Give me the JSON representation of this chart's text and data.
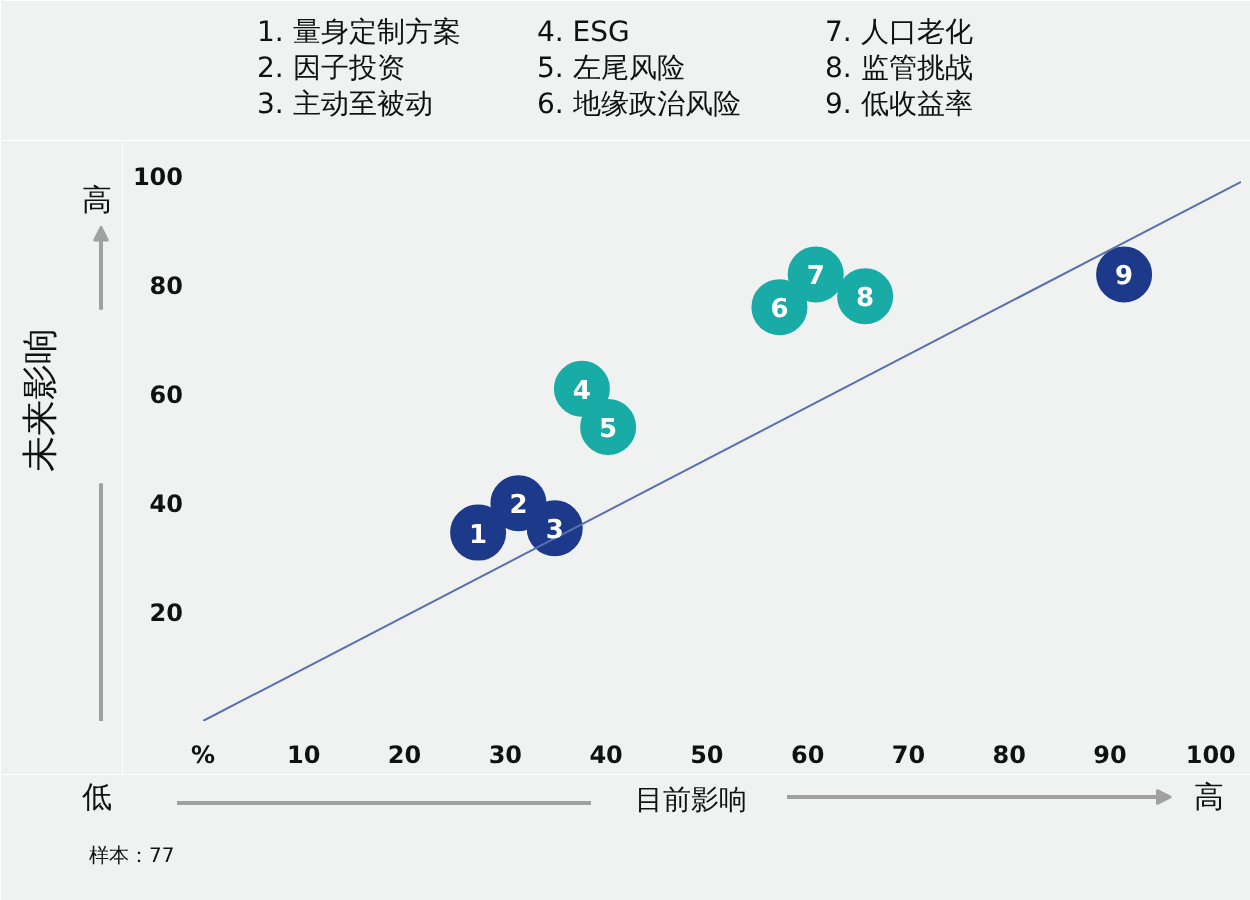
{
  "chart_data": {
    "type": "scatter",
    "xlabel": "目前影响",
    "ylabel": "未来影响",
    "xlim": [
      0,
      103
    ],
    "ylim": [
      0,
      101
    ],
    "xticks": [
      {
        "value": 0,
        "label": "%"
      },
      10,
      20,
      30,
      40,
      50,
      60,
      70,
      80,
      90,
      100
    ],
    "yticks": [
      20,
      40,
      60,
      80,
      100
    ],
    "grid": false,
    "series": [
      {
        "color": "#1d3a8a",
        "marker": "circle",
        "x": [
          27.3,
          31.3,
          34.9,
          91.4
        ],
        "values": [
          34.6,
          40,
          35.4,
          82
        ]
      },
      {
        "color": "#19aba5",
        "marker": "circle",
        "x": [
          37.6,
          40.2,
          57.2,
          60.8,
          65.7
        ],
        "values": [
          61,
          54,
          76,
          82,
          78
        ]
      },
      {
        "type": "line",
        "color": "#5a6fae",
        "x": [
          0,
          103
        ],
        "values": [
          0,
          99
        ]
      }
    ],
    "annotations": [
      "1.  量身定制方案",
      "2.  因子投资",
      "3.  主动至被动",
      "4.  ESG",
      "5.  左尾风险",
      "6.  地缘政治风险",
      "7.  人口老化",
      "8.  监管挑战",
      "9.  低收益率",
      "样本：77",
      "高",
      "低",
      "高",
      {
        "text": "1",
        "x": 27.3,
        "y": 34.6
      },
      {
        "text": "2",
        "x": 31.3,
        "y": 40
      },
      {
        "text": "3",
        "x": 34.9,
        "y": 35.4
      },
      {
        "text": "9",
        "x": 91.4,
        "y": 82
      },
      {
        "text": "4",
        "x": 37.6,
        "y": 61
      },
      {
        "text": "5",
        "x": 40.2,
        "y": 54
      },
      {
        "text": "6",
        "x": 57.2,
        "y": 76
      },
      {
        "text": "7",
        "x": 60.8,
        "y": 82
      },
      {
        "text": "8",
        "x": 65.7,
        "y": 78
      }
    ]
  }
}
